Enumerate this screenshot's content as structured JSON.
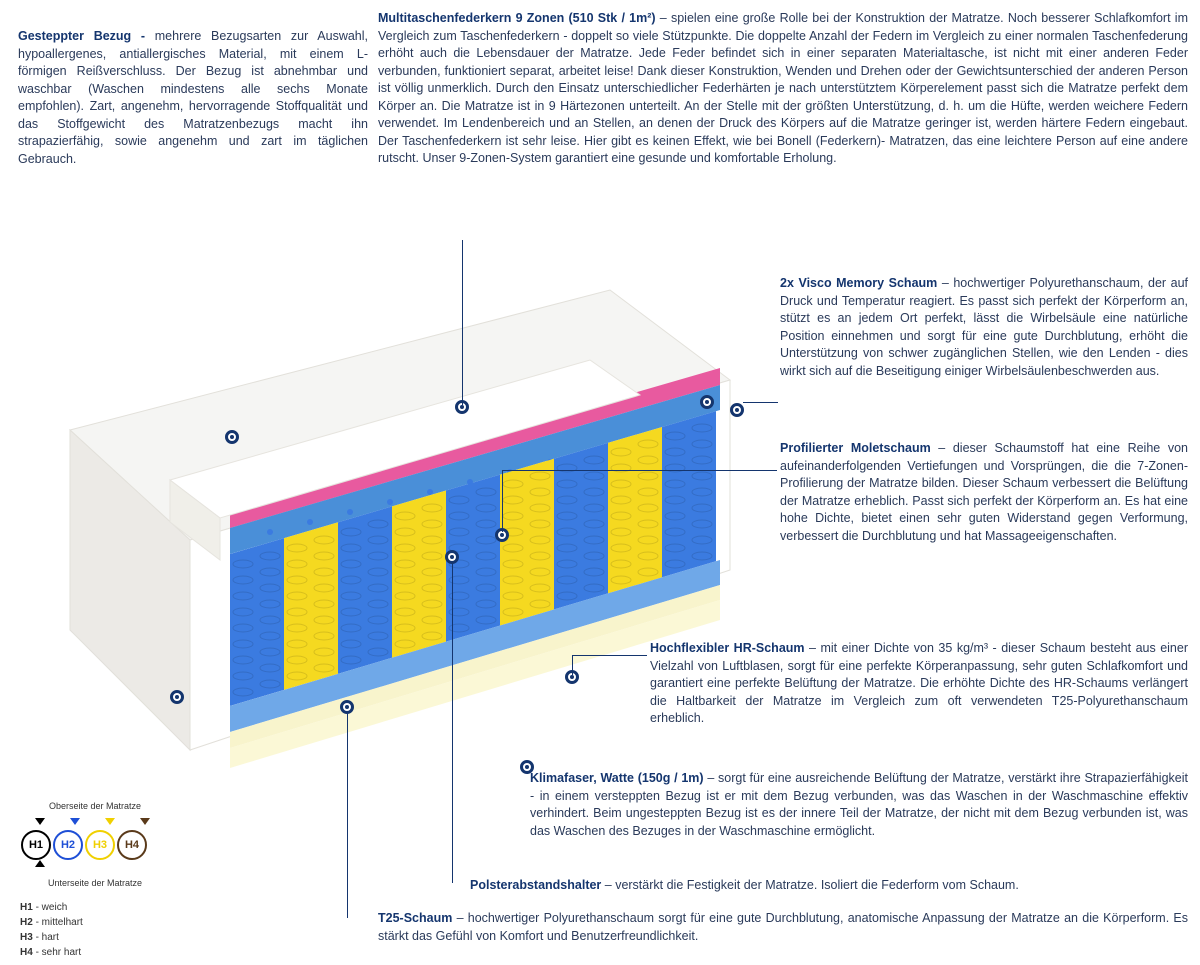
{
  "sections": {
    "bezug": {
      "title": "Gesteppter Bezug - ",
      "text": "mehrere Bezugsarten zur Auswahl, hypoallergenes, antiallergisches Material, mit einem L-förmigen Reißverschluss. Der Bezug ist abnehmbar und waschbar (Waschen mindestens alle sechs Monate empfohlen). Zart, angenehm, hervorragende Stoffqualität und das Stoffgewicht des Matratzenbezugs macht ihn strapazierfähig, sowie angenehm und zart im täglichen Gebrauch."
    },
    "federkern": {
      "title": "Multitaschenfederkern 9 Zonen (510 Stk / 1m²) ",
      "text": "– spielen eine große Rolle bei der Konstruktion der Matratze. Noch besserer Schlafkomfort im Vergleich zum Taschenfederkern - doppelt so viele Stützpunkte. Die doppelte Anzahl der Federn im Vergleich zu einer normalen Taschenfederung erhöht auch die Lebensdauer der Matratze. Jede Feder befindet sich in einer separaten Materialtasche, ist nicht mit einer anderen Feder verbunden, funktioniert separat, arbeitet leise! Dank dieser Konstruktion, Wenden und Drehen oder der Gewichtsunterschied der anderen Person ist völlig unmerklich. Durch den Einsatz unterschiedlicher Federhärten je nach unterstütztem Körperelement passt sich die Matratze perfekt dem Körper an. Die Matratze ist in 9 Härtezonen unterteilt. An der Stelle mit der größten Unterstützung, d. h. um die Hüfte, werden weichere Federn verwendet. Im Lendenbereich und an Stellen, an denen der Druck des Körpers auf die Matratze geringer ist, werden härtere Federn eingebaut. Der Taschenfederkern ist sehr leise. Hier gibt es keinen Effekt, wie bei Bonell (Federkern)- Matratzen, das eine leichtere Person auf eine andere rutscht. Unser 9-Zonen-System garantiert eine gesunde und komfortable Erholung."
    },
    "visco": {
      "title": "2x Visco Memory Schaum ",
      "text": "– hochwertiger Polyurethanschaum, der auf Druck und Temperatur reagiert. Es passt sich perfekt der Körperform an, stützt es an jedem Ort perfekt, lässt die Wirbelsäule eine natürliche Position einnehmen und sorgt für eine gute Durchblutung, erhöht die Unterstützung von schwer zugänglichen Stellen, wie den Lenden - dies wirkt sich auf die Beseitigung einiger Wirbelsäulenbeschwerden aus."
    },
    "molet": {
      "title": "Profilierter Moletschaum ",
      "text": "– dieser Schaumstoff hat eine Reihe von aufeinanderfolgenden Vertiefungen und Vorsprüngen, die die 7-Zonen-Profilierung der Matratze bilden. Dieser Schaum verbessert die Belüftung der Matratze erheblich. Passt sich perfekt der Körperform an. Es hat eine hohe Dichte, bietet einen sehr guten Widerstand gegen Verformung, verbessert die Durchblutung und hat Massageeigenschaften."
    },
    "hr": {
      "title": "Hochflexibler HR-Schaum ",
      "text": "– mit einer Dichte von 35 kg/m³ - dieser Schaum besteht aus einer Vielzahl von Luftblasen, sorgt für eine perfekte Körperanpassung, sehr guten Schlafkomfort und garantiert eine perfekte Belüftung der Matratze. Die erhöhte Dichte des HR-Schaums verlängert die Haltbarkeit der Matratze im Vergleich zum oft verwendeten T25-Polyurethanschaum erheblich."
    },
    "klima": {
      "title": "Klimafaser, Watte (150g / 1m) ",
      "text": "– sorgt für eine ausreichende Belüftung der Matratze, verstärkt ihre Strapazierfähigkeit - in einem versteppten Bezug ist er mit dem Bezug verbunden, was das Waschen in der Waschmaschine effektiv verhindert. Beim ungesteppten Bezug ist es der innere Teil der Matratze, der nicht mit dem Bezug verbunden ist, was das Waschen des Bezuges in der Waschmaschine ermöglicht."
    },
    "polster": {
      "title": "Polsterabstandshalter ",
      "text": "– verstärkt die Festigkeit der Matratze. Isoliert die Federform vom Schaum."
    },
    "t25": {
      "title": "T25-Schaum ",
      "text": "– hochwertiger Polyurethanschaum sorgt für eine gute Durchblutung, anatomische Anpassung der Matratze an die Körperform. Es stärkt das Gefühl von Komfort und Benutzerfreundlichkeit."
    }
  },
  "legend": {
    "top": "Oberseite der Matratze",
    "bottom": "Unterseite der Matratze",
    "items": [
      {
        "code": "H1",
        "label": "weich",
        "color": "#000000"
      },
      {
        "code": "H2",
        "label": "mittelhart",
        "color": "#1e4fd6"
      },
      {
        "code": "H3",
        "label": "hart",
        "color": "#f0d000"
      },
      {
        "code": "H4",
        "label": "sehr hart",
        "color": "#5a3a1a"
      }
    ]
  },
  "mattress": {
    "colors": {
      "coverTop": "#f5f5f3",
      "coverSide": "#eceae6",
      "coverFront": "#ffffff",
      "visco": "#e85a9f",
      "molet": "#4a8fd8",
      "springBlue": "#3b7be0",
      "springYellow": "#f5d920",
      "hr": "#6fa8e8",
      "klima": "#f8f4cc",
      "t25": "#fbf8d6",
      "edge": "#cfcfcf"
    }
  }
}
